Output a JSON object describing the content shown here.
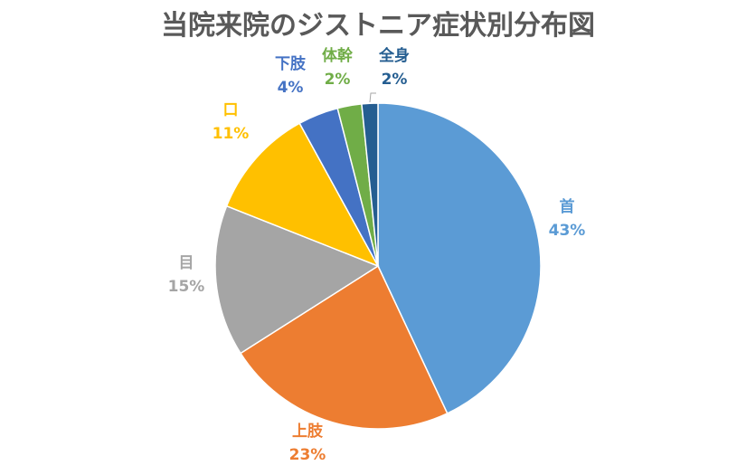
{
  "chart_data": {
    "type": "pie",
    "title": "当院来院のジストニア症状別分布図",
    "slices": [
      {
        "label": "首",
        "value": 43,
        "display": "43%",
        "color": "#5B9BD5"
      },
      {
        "label": "上肢",
        "value": 23,
        "display": "23%",
        "color": "#ED7D31"
      },
      {
        "label": "目",
        "value": 15,
        "display": "15%",
        "color": "#A5A5A5"
      },
      {
        "label": "口",
        "value": 11,
        "display": "11%",
        "color": "#FFC000"
      },
      {
        "label": "下肢",
        "value": 4,
        "display": "4%",
        "color": "#4472C4"
      },
      {
        "label": "体幹",
        "value": 2.4,
        "display": "2%",
        "color": "#70AD47"
      },
      {
        "label": "全身",
        "value": 1.6,
        "display": "2%",
        "color": "#255E91"
      }
    ],
    "legend": "none",
    "start": "top",
    "direction": "clockwise"
  }
}
